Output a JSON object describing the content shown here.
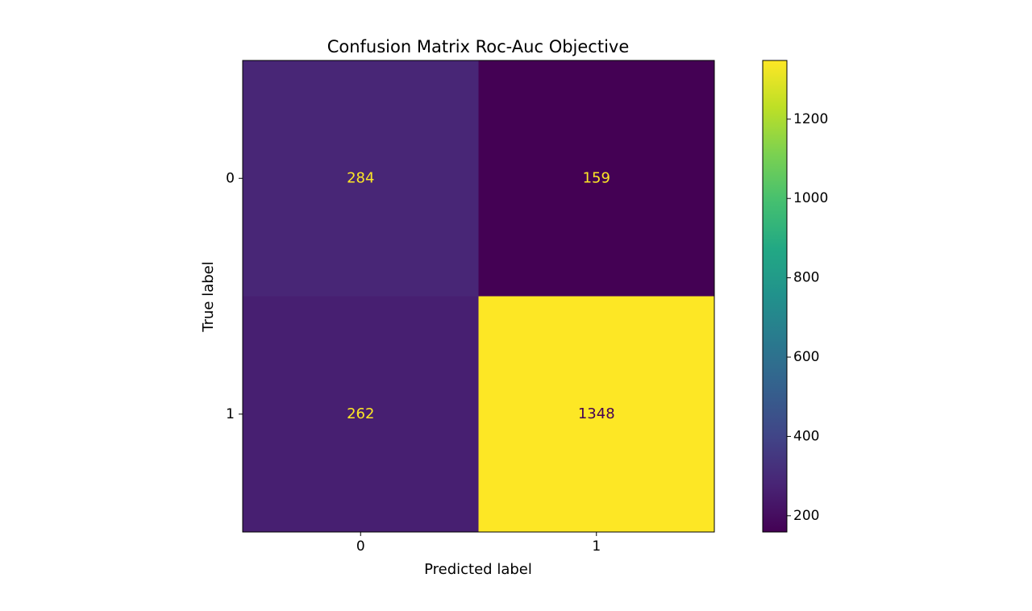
{
  "chart_data": {
    "type": "heatmap",
    "title": "Confusion Matrix Roc-Auc Objective",
    "x_label": "Predicted label",
    "y_label": "True label",
    "x_categories": [
      "0",
      "1"
    ],
    "y_categories": [
      "0",
      "1"
    ],
    "values": [
      [
        284,
        159
      ],
      [
        262,
        1348
      ]
    ],
    "colormap": "viridis",
    "clim": [
      159,
      1348
    ],
    "cticks": [
      200,
      400,
      600,
      800,
      1000,
      1200
    ]
  }
}
